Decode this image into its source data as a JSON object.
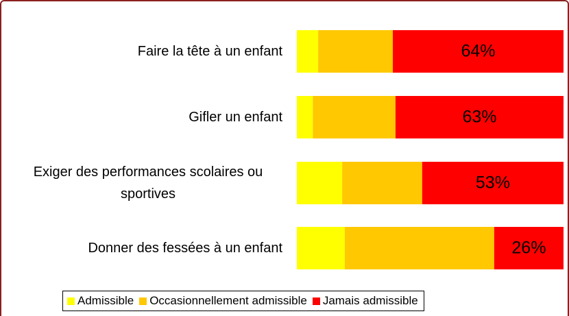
{
  "chart_data": {
    "type": "bar",
    "orientation": "horizontal",
    "stacked": true,
    "categories": [
      "Faire la tête à un enfant",
      "Gifler un enfant",
      "Exiger des performances scolaires ou sportives",
      "Donner des fessées à un enfant"
    ],
    "series": [
      {
        "name": "Admissible",
        "color": "#ffff00",
        "values": [
          8,
          6,
          17,
          18
        ]
      },
      {
        "name": "Occasionnellement admissible",
        "color": "#ffc800",
        "values": [
          28,
          31,
          30,
          56
        ]
      },
      {
        "name": "Jamais admissible",
        "color": "#ff0000",
        "values": [
          64,
          63,
          53,
          26
        ],
        "value_labels": [
          "64%",
          "63%",
          "53%",
          "26%"
        ]
      }
    ],
    "xlim": [
      0,
      100
    ],
    "legend": "bottom"
  }
}
